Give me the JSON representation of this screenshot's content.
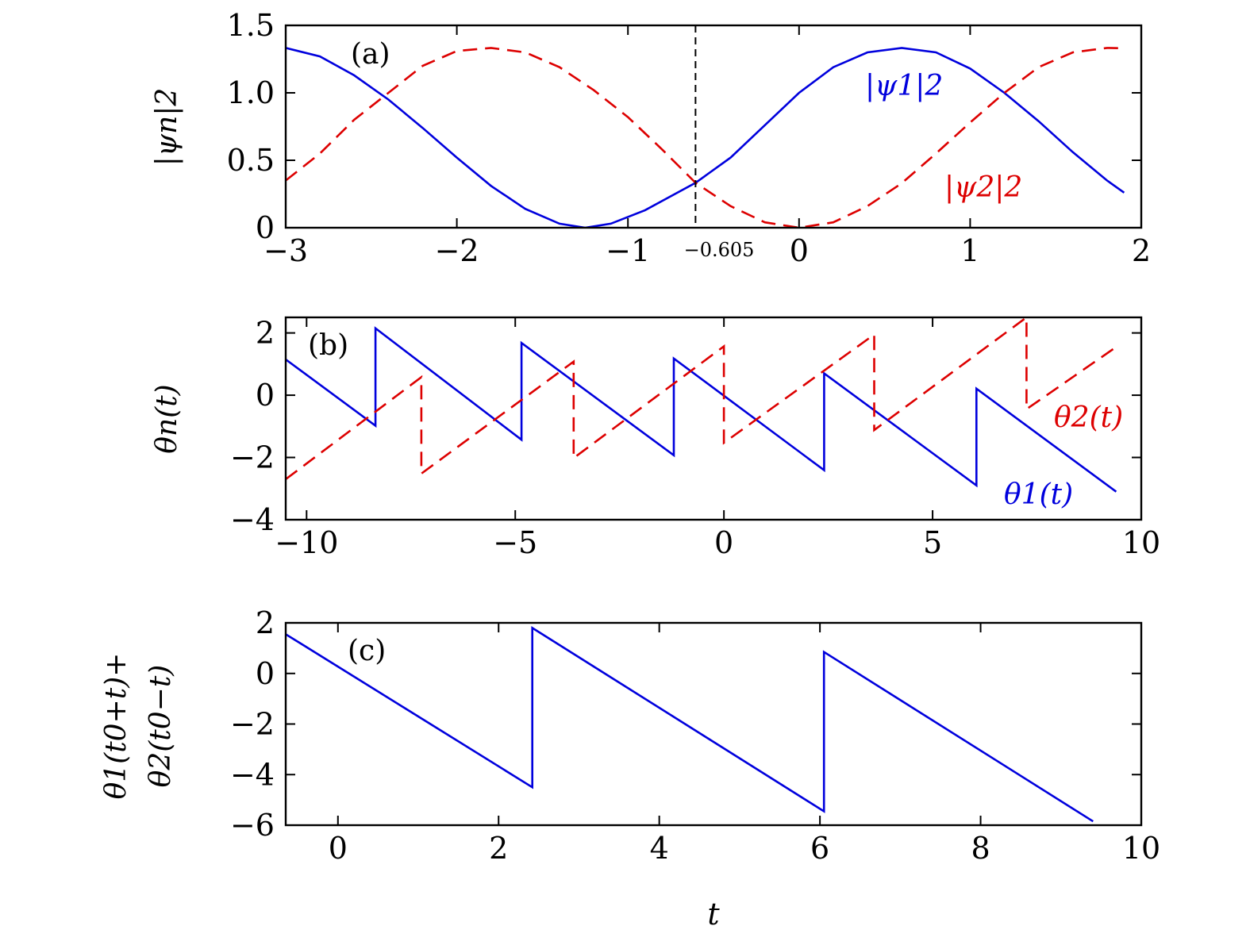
{
  "chart_data": [
    {
      "panel_label": "(a)",
      "type": "line",
      "ylabel": "|ψn|2",
      "xlim": [
        -3,
        2
      ],
      "ylim": [
        0,
        1.5
      ],
      "xticks": [
        -3,
        -2,
        -1,
        0,
        1,
        2
      ],
      "xtick_labels": [
        "−3",
        "−2",
        "−1",
        "0",
        "1",
        "2"
      ],
      "yticks": [
        0,
        0.5,
        1.0,
        1.5
      ],
      "ytick_labels": [
        "0",
        "0.5",
        "1.0",
        "1.5"
      ],
      "vline": {
        "x": -0.605,
        "label": "−0.605",
        "style": "dashed",
        "color": "#000000"
      },
      "series": [
        {
          "name": "|ψ1|2",
          "color": "#0000dd",
          "style": "solid",
          "points": [
            [
              -3.0,
              1.333
            ],
            [
              -2.8,
              1.27
            ],
            [
              -2.6,
              1.13
            ],
            [
              -2.4,
              0.95
            ],
            [
              -2.2,
              0.74
            ],
            [
              -2.0,
              0.52
            ],
            [
              -1.8,
              0.31
            ],
            [
              -1.6,
              0.14
            ],
            [
              -1.4,
              0.03
            ],
            [
              -1.25,
              0.0
            ],
            [
              -1.1,
              0.03
            ],
            [
              -0.9,
              0.13
            ],
            [
              -0.605,
              0.333
            ],
            [
              -0.4,
              0.52
            ],
            [
              -0.2,
              0.76
            ],
            [
              0.0,
              1.0
            ],
            [
              0.2,
              1.19
            ],
            [
              0.4,
              1.3
            ],
            [
              0.6,
              1.333
            ],
            [
              0.8,
              1.3
            ],
            [
              1.0,
              1.18
            ],
            [
              1.2,
              1.0
            ],
            [
              1.4,
              0.79
            ],
            [
              1.6,
              0.56
            ],
            [
              1.8,
              0.35
            ],
            [
              1.9,
              0.26
            ]
          ]
        },
        {
          "name": "|ψ2|2",
          "color": "#dd0000",
          "style": "dashed",
          "points": [
            [
              -3.0,
              0.35
            ],
            [
              -2.8,
              0.55
            ],
            [
              -2.6,
              0.8
            ],
            [
              -2.4,
              1.0
            ],
            [
              -2.2,
              1.2
            ],
            [
              -2.0,
              1.31
            ],
            [
              -1.8,
              1.333
            ],
            [
              -1.6,
              1.3
            ],
            [
              -1.4,
              1.19
            ],
            [
              -1.2,
              1.02
            ],
            [
              -1.0,
              0.82
            ],
            [
              -0.8,
              0.58
            ],
            [
              -0.605,
              0.333
            ],
            [
              -0.4,
              0.16
            ],
            [
              -0.2,
              0.04
            ],
            [
              0.0,
              0.0
            ],
            [
              0.2,
              0.04
            ],
            [
              0.4,
              0.16
            ],
            [
              0.6,
              0.33
            ],
            [
              0.8,
              0.55
            ],
            [
              1.0,
              0.78
            ],
            [
              1.2,
              1.0
            ],
            [
              1.4,
              1.19
            ],
            [
              1.6,
              1.3
            ],
            [
              1.8,
              1.333
            ],
            [
              1.9,
              1.33
            ]
          ]
        }
      ]
    },
    {
      "panel_label": "(b)",
      "type": "line",
      "ylabel": "θn(t)",
      "xlim": [
        -10.5,
        10
      ],
      "ylim": [
        -4,
        2.5
      ],
      "xticks": [
        -10,
        -5,
        0,
        5,
        10
      ],
      "xtick_labels": [
        "−10",
        "−5",
        "0",
        "5",
        "10"
      ],
      "yticks": [
        -4,
        -2,
        0,
        2
      ],
      "ytick_labels": [
        "−4",
        "−2",
        "0",
        "2"
      ],
      "series": [
        {
          "name": "θ1(t)",
          "color": "#0000dd",
          "style": "solid",
          "points": [
            [
              -10.5,
              1.15
            ],
            [
              -8.35,
              -0.98
            ],
            [
              -8.35,
              2.15
            ],
            [
              -4.85,
              -1.43
            ],
            [
              -4.85,
              1.68
            ],
            [
              -1.2,
              -1.93
            ],
            [
              -1.2,
              1.18
            ],
            [
              2.4,
              -2.41
            ],
            [
              2.4,
              0.7
            ],
            [
              6.05,
              -2.9
            ],
            [
              6.05,
              0.21
            ],
            [
              9.4,
              -3.1
            ]
          ]
        },
        {
          "name": "θ2(t)",
          "color": "#dd0000",
          "style": "dashed",
          "points": [
            [
              -10.5,
              -2.7
            ],
            [
              -7.25,
              0.58
            ],
            [
              -7.25,
              -2.52
            ],
            [
              -3.6,
              1.08
            ],
            [
              -3.6,
              -2.02
            ],
            [
              0.0,
              1.57
            ],
            [
              0.0,
              -1.53
            ],
            [
              3.6,
              1.95
            ],
            [
              3.6,
              -1.12
            ],
            [
              7.25,
              2.5
            ],
            [
              7.25,
              -0.45
            ],
            [
              9.4,
              1.55
            ]
          ]
        }
      ]
    },
    {
      "panel_label": "(c)",
      "type": "line",
      "ylabel_line1": "θ1(t0+t)+",
      "ylabel_line2": "θ2(t0−t)",
      "xlabel": "t",
      "xlim": [
        -0.65,
        10
      ],
      "ylim": [
        -6,
        2
      ],
      "xticks": [
        0,
        2,
        4,
        6,
        8,
        10
      ],
      "xtick_labels": [
        "0",
        "2",
        "4",
        "6",
        "8",
        "10"
      ],
      "yticks": [
        -6,
        -4,
        -2,
        0,
        2
      ],
      "ytick_labels": [
        "−6",
        "−4",
        "−2",
        "0",
        "2"
      ],
      "series": [
        {
          "color": "#0000dd",
          "style": "solid",
          "points": [
            [
              -0.65,
              1.55
            ],
            [
              2.42,
              -4.5
            ],
            [
              2.42,
              1.8
            ],
            [
              6.05,
              -5.45
            ],
            [
              6.05,
              0.85
            ],
            [
              9.4,
              -5.85
            ]
          ]
        }
      ]
    }
  ]
}
